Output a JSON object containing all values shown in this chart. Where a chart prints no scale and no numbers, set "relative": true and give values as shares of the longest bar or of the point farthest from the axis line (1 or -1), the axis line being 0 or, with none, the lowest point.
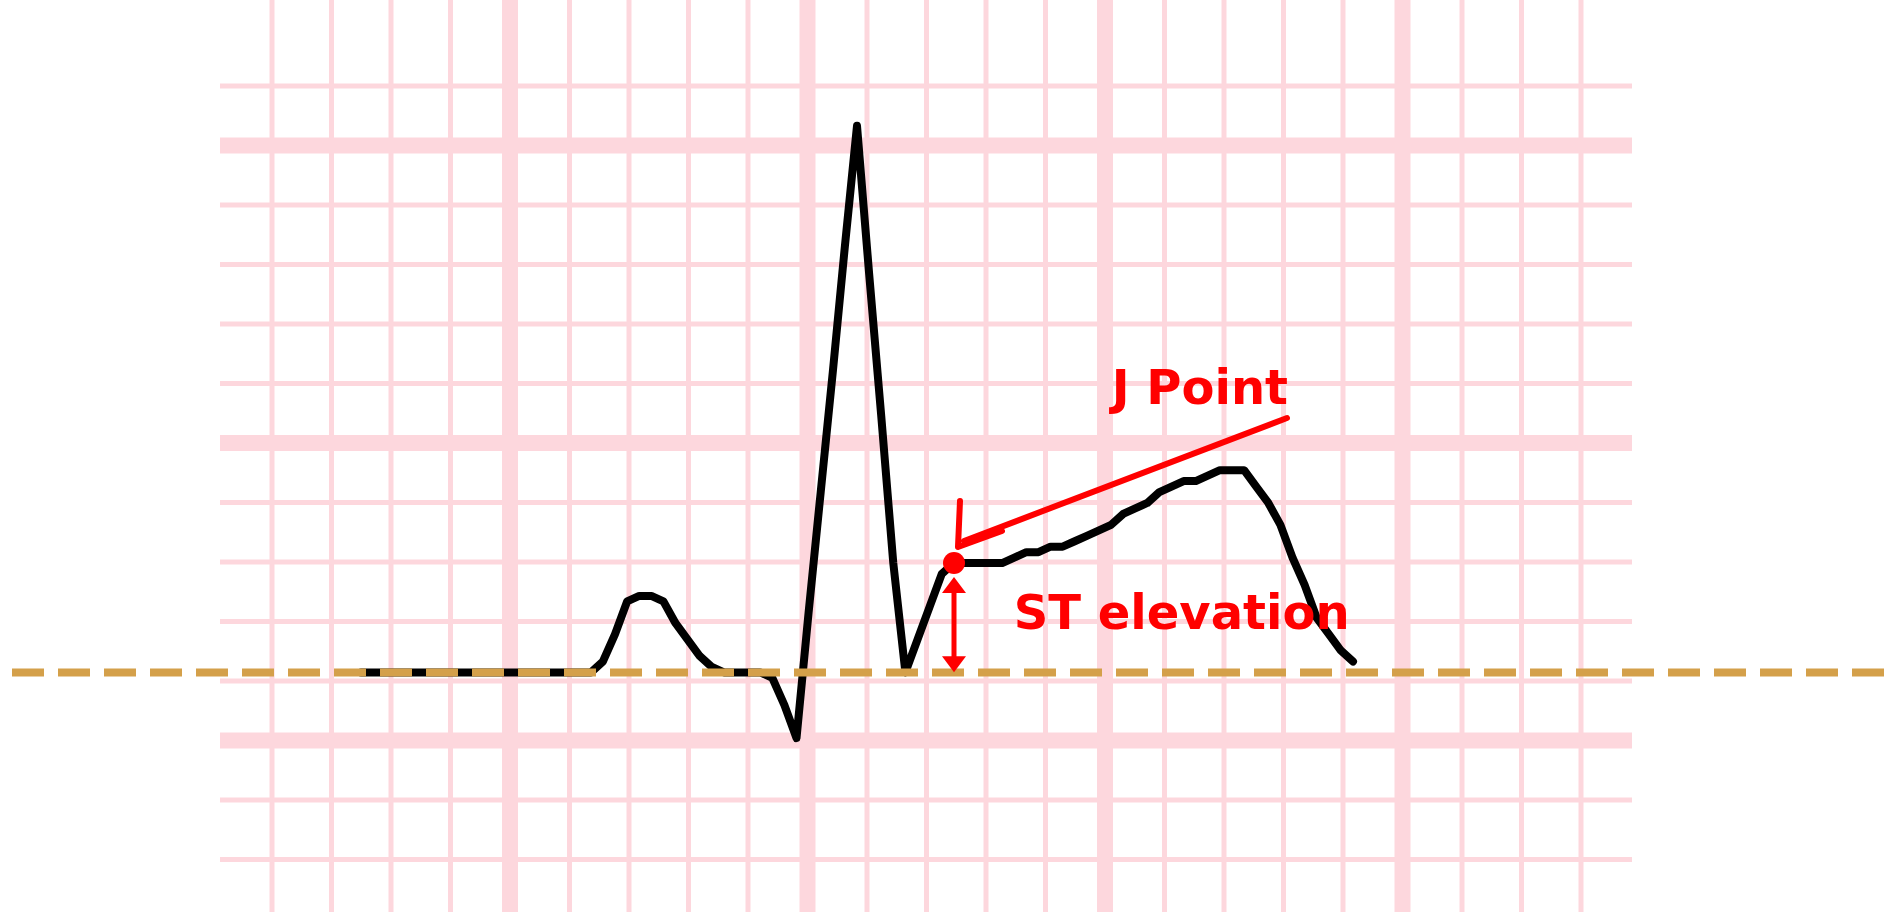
{
  "chart_data": {
    "type": "line",
    "relative": true,
    "grid": true,
    "categories": [
      null,
      null,
      null,
      null,
      null,
      null,
      null,
      null,
      null,
      null,
      null,
      null,
      null,
      null,
      null,
      null,
      null,
      null,
      null,
      null,
      null,
      null,
      null,
      null,
      null,
      null,
      null,
      null,
      null,
      null,
      null,
      null,
      null,
      null,
      null,
      null,
      null,
      null,
      null,
      null,
      null,
      null,
      null,
      null,
      null,
      null,
      null,
      null,
      null,
      null,
      null,
      null,
      null,
      null,
      null,
      null,
      null,
      null,
      null,
      null,
      null,
      null,
      null,
      null,
      null,
      null,
      null,
      null,
      null,
      null,
      null,
      null,
      null,
      null,
      null,
      null,
      null,
      null,
      null,
      null,
      null,
      null,
      null
    ],
    "series": [
      {
        "color": "#000000",
        "values": [
          0,
          0,
          0,
          0,
          0,
          0,
          0,
          0,
          0,
          0,
          0,
          0,
          0,
          0,
          0,
          0,
          0,
          0,
          0,
          0,
          0.02,
          0.07,
          0.13,
          0.14,
          0.14,
          0.13,
          0.09,
          0.06,
          0.03,
          0.01,
          0,
          0,
          0,
          0,
          -0.01,
          -0.06,
          -0.12,
          0.11,
          0.33,
          0.55,
          0.78,
          1,
          0.73,
          0.47,
          0.2,
          0,
          0.06,
          0.12,
          0.18,
          0.2,
          0.2,
          0.2,
          0.2,
          0.2,
          0.21,
          0.22,
          0.22,
          0.23,
          0.23,
          0.24,
          0.25,
          0.26,
          0.27,
          0.29,
          0.3,
          0.31,
          0.33,
          0.34,
          0.35,
          0.35,
          0.36,
          0.37,
          0.37,
          0.37,
          0.34,
          0.31,
          0.27,
          0.21,
          0.16,
          0.1,
          0.07,
          0.04,
          0.02
        ]
      }
    ],
    "ref_lines": [
      {
        "axis": "y",
        "value": 0,
        "color": "#d4a04a",
        "line_style": "dashed"
      }
    ],
    "annotations": [
      "J Point",
      "ST elevation"
    ]
  }
}
